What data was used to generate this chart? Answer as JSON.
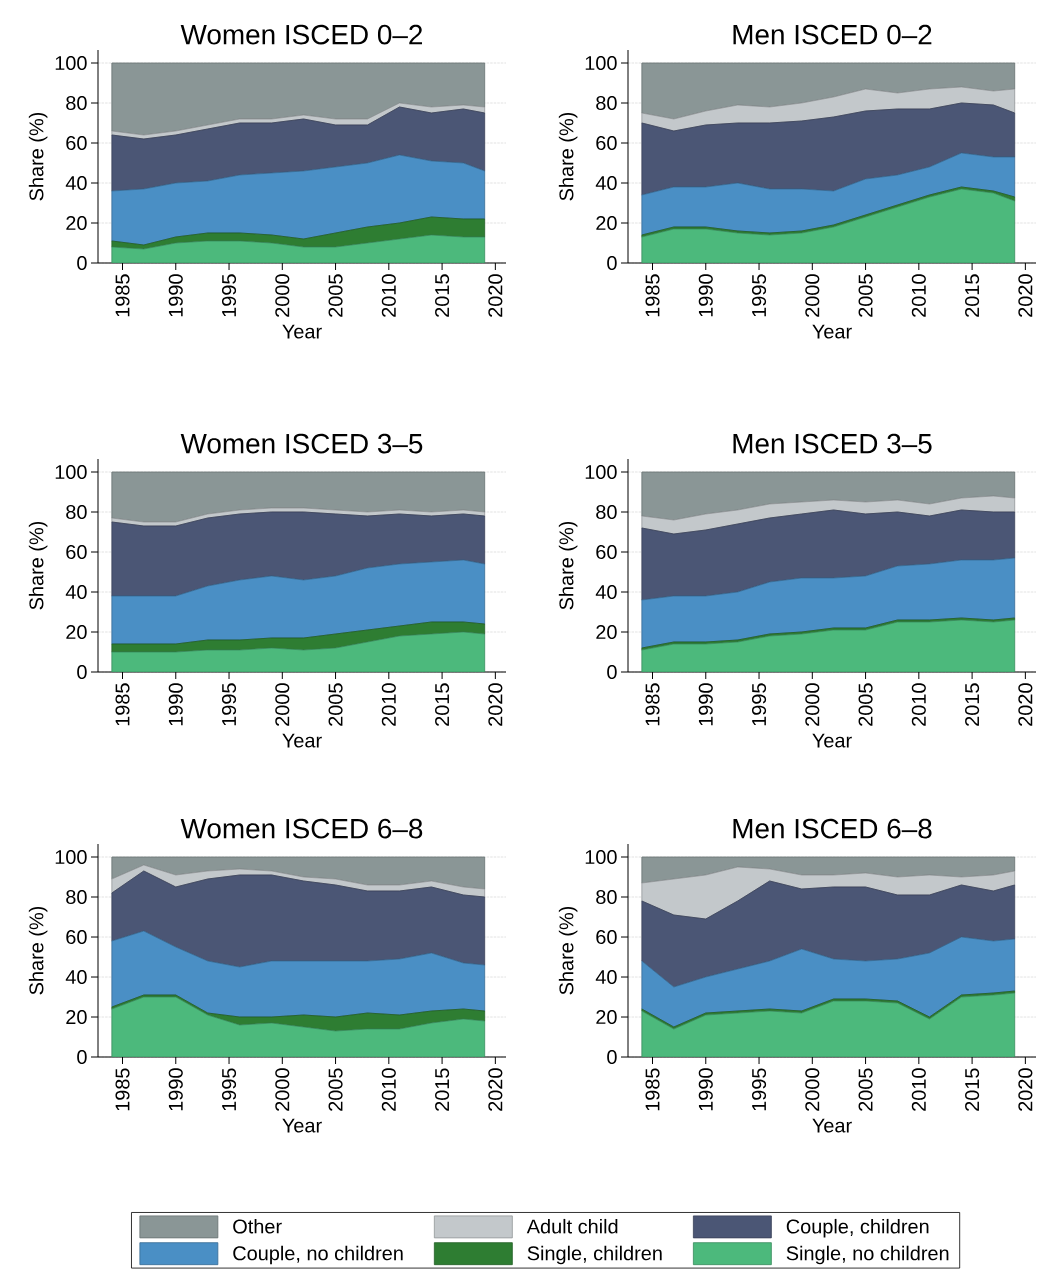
{
  "chart_data": [
    {
      "type": "area",
      "title": "Women ISCED 0–2",
      "xlabel": "Year",
      "ylabel": "Share (%)",
      "stacked": true,
      "grid": "y",
      "x": [
        1984,
        1987,
        1990,
        1993,
        1996,
        1999,
        2002,
        2005,
        2008,
        2011,
        2014,
        2017,
        2019
      ],
      "xlim": [
        1982.7,
        2021
      ],
      "ylim": [
        0,
        106.5
      ],
      "xticks": [
        1985,
        1990,
        1995,
        2000,
        2005,
        2010,
        2015,
        2020
      ],
      "yticks": [
        0,
        20,
        40,
        60,
        80,
        100
      ],
      "series": [
        {
          "color": "#4cb97c",
          "values": [
            8,
            7,
            10,
            11,
            11,
            10,
            8,
            8,
            10,
            12,
            14,
            13,
            13
          ]
        },
        {
          "color": "#2e7d32",
          "values": [
            3,
            2,
            3,
            4,
            4,
            4,
            4,
            7,
            8,
            8,
            9,
            9,
            9
          ]
        },
        {
          "color": "#4a8fc5",
          "values": [
            25,
            28,
            27,
            26,
            29,
            31,
            34,
            33,
            32,
            34,
            28,
            28,
            24
          ]
        },
        {
          "color": "#4b5675",
          "values": [
            28,
            25,
            24,
            26,
            26,
            25,
            26,
            21,
            19,
            24,
            24,
            27,
            29
          ]
        },
        {
          "color": "#c3c8cb",
          "values": [
            2,
            2,
            2,
            2,
            2,
            2,
            2,
            3,
            3,
            2,
            3,
            2,
            3
          ]
        },
        {
          "color": "#8a9696",
          "values": [
            34,
            36,
            34,
            31,
            28,
            28,
            26,
            28,
            28,
            20,
            22,
            21,
            22
          ]
        }
      ]
    },
    {
      "type": "area",
      "title": "Men ISCED 0–2",
      "xlabel": "Year",
      "ylabel": "Share (%)",
      "stacked": true,
      "grid": "y",
      "x": [
        1984,
        1987,
        1990,
        1993,
        1996,
        1999,
        2002,
        2005,
        2008,
        2011,
        2014,
        2017,
        2019
      ],
      "xlim": [
        1982.7,
        2021
      ],
      "ylim": [
        0,
        106.5
      ],
      "xticks": [
        1985,
        1990,
        1995,
        2000,
        2005,
        2010,
        2015,
        2020
      ],
      "yticks": [
        0,
        20,
        40,
        60,
        80,
        100
      ],
      "series": [
        {
          "color": "#4cb97c",
          "values": [
            13,
            17,
            17,
            15,
            14,
            15,
            18,
            23,
            28,
            33,
            37,
            35,
            31
          ]
        },
        {
          "color": "#2e7d32",
          "values": [
            1,
            1,
            1,
            1,
            1,
            1,
            1,
            1,
            1,
            1,
            1,
            1,
            2
          ]
        },
        {
          "color": "#4a8fc5",
          "values": [
            20,
            20,
            20,
            24,
            22,
            21,
            17,
            18,
            15,
            14,
            17,
            17,
            20
          ]
        },
        {
          "color": "#4b5675",
          "values": [
            36,
            28,
            31,
            30,
            33,
            34,
            37,
            34,
            33,
            29,
            25,
            26,
            22
          ]
        },
        {
          "color": "#c3c8cb",
          "values": [
            5,
            6,
            7,
            9,
            8,
            9,
            10,
            11,
            8,
            10,
            8,
            7,
            12
          ]
        },
        {
          "color": "#8a9696",
          "values": [
            25,
            28,
            24,
            21,
            22,
            20,
            17,
            13,
            15,
            13,
            12,
            14,
            13
          ]
        }
      ]
    },
    {
      "type": "area",
      "title": "Women ISCED 3–5",
      "xlabel": "Year",
      "ylabel": "Share (%)",
      "stacked": true,
      "grid": "y",
      "x": [
        1984,
        1987,
        1990,
        1993,
        1996,
        1999,
        2002,
        2005,
        2008,
        2011,
        2014,
        2017,
        2019
      ],
      "xlim": [
        1982.7,
        2021
      ],
      "ylim": [
        0,
        106.5
      ],
      "xticks": [
        1985,
        1990,
        1995,
        2000,
        2005,
        2010,
        2015,
        2020
      ],
      "yticks": [
        0,
        20,
        40,
        60,
        80,
        100
      ],
      "series": [
        {
          "color": "#4cb97c",
          "values": [
            10,
            10,
            10,
            11,
            11,
            12,
            11,
            12,
            15,
            18,
            19,
            20,
            19
          ]
        },
        {
          "color": "#2e7d32",
          "values": [
            4,
            4,
            4,
            5,
            5,
            5,
            6,
            7,
            6,
            5,
            6,
            5,
            5
          ]
        },
        {
          "color": "#4a8fc5",
          "values": [
            24,
            24,
            24,
            27,
            30,
            31,
            29,
            29,
            31,
            31,
            30,
            31,
            30
          ]
        },
        {
          "color": "#4b5675",
          "values": [
            37,
            35,
            35,
            34,
            33,
            32,
            34,
            31,
            26,
            25,
            23,
            23,
            24
          ]
        },
        {
          "color": "#c3c8cb",
          "values": [
            2,
            2,
            2,
            2,
            2,
            2,
            2,
            2,
            2,
            2,
            2,
            2,
            2
          ]
        },
        {
          "color": "#8a9696",
          "values": [
            23,
            25,
            25,
            21,
            19,
            18,
            18,
            19,
            20,
            19,
            20,
            19,
            20
          ]
        }
      ]
    },
    {
      "type": "area",
      "title": "Men ISCED 3–5",
      "xlabel": "Year",
      "ylabel": "Share (%)",
      "stacked": true,
      "grid": "y",
      "x": [
        1984,
        1987,
        1990,
        1993,
        1996,
        1999,
        2002,
        2005,
        2008,
        2011,
        2014,
        2017,
        2019
      ],
      "xlim": [
        1982.7,
        2021
      ],
      "ylim": [
        0,
        106.5
      ],
      "xticks": [
        1985,
        1990,
        1995,
        2000,
        2005,
        2010,
        2015,
        2020
      ],
      "yticks": [
        0,
        20,
        40,
        60,
        80,
        100
      ],
      "series": [
        {
          "color": "#4cb97c",
          "values": [
            11,
            14,
            14,
            15,
            18,
            19,
            21,
            21,
            25,
            25,
            26,
            25,
            26
          ]
        },
        {
          "color": "#2e7d32",
          "values": [
            1,
            1,
            1,
            1,
            1,
            1,
            1,
            1,
            1,
            1,
            1,
            1,
            1
          ]
        },
        {
          "color": "#4a8fc5",
          "values": [
            24,
            23,
            23,
            24,
            26,
            27,
            25,
            26,
            27,
            28,
            29,
            30,
            30
          ]
        },
        {
          "color": "#4b5675",
          "values": [
            36,
            31,
            33,
            34,
            32,
            32,
            34,
            31,
            27,
            24,
            25,
            24,
            23
          ]
        },
        {
          "color": "#c3c8cb",
          "values": [
            6,
            7,
            8,
            7,
            7,
            6,
            5,
            6,
            6,
            6,
            6,
            8,
            7
          ]
        },
        {
          "color": "#8a9696",
          "values": [
            22,
            24,
            21,
            19,
            16,
            15,
            14,
            15,
            14,
            16,
            13,
            12,
            13
          ]
        }
      ]
    },
    {
      "type": "area",
      "title": "Women ISCED 6–8",
      "xlabel": "Year",
      "ylabel": "Share (%)",
      "stacked": true,
      "grid": "y",
      "legend": "bottom",
      "x": [
        1984,
        1987,
        1990,
        1993,
        1996,
        1999,
        2002,
        2005,
        2008,
        2011,
        2014,
        2017,
        2019
      ],
      "xlim": [
        1982.7,
        2021
      ],
      "ylim": [
        0,
        106.5
      ],
      "xticks": [
        1985,
        1990,
        1995,
        2000,
        2005,
        2010,
        2015,
        2020
      ],
      "yticks": [
        0,
        20,
        40,
        60,
        80,
        100
      ],
      "series": [
        {
          "name": "Single, no children",
          "color": "#4cb97c",
          "values": [
            24,
            30,
            30,
            21,
            16,
            17,
            15,
            13,
            14,
            14,
            17,
            19,
            18
          ]
        },
        {
          "name": "Single, children",
          "color": "#2e7d32",
          "values": [
            1,
            1,
            1,
            1,
            4,
            3,
            6,
            7,
            8,
            7,
            6,
            5,
            5
          ]
        },
        {
          "name": "Couple, no children",
          "color": "#4a8fc5",
          "values": [
            33,
            32,
            24,
            26,
            25,
            28,
            27,
            28,
            26,
            28,
            29,
            23,
            23
          ]
        },
        {
          "name": "Couple, children",
          "color": "#4b5675",
          "values": [
            24,
            30,
            30,
            41,
            46,
            43,
            40,
            38,
            35,
            34,
            33,
            34,
            34
          ]
        },
        {
          "name": "Adult child",
          "color": "#c3c8cb",
          "values": [
            7,
            3,
            6,
            4,
            3,
            2,
            2,
            3,
            3,
            3,
            3,
            4,
            4
          ]
        },
        {
          "name": "Other",
          "color": "#8a9696",
          "values": [
            11,
            4,
            9,
            7,
            6,
            7,
            10,
            11,
            14,
            14,
            12,
            15,
            16
          ]
        }
      ]
    },
    {
      "type": "area",
      "title": "Men ISCED 6–8",
      "xlabel": "Year",
      "ylabel": "Share (%)",
      "stacked": true,
      "grid": "y",
      "x": [
        1984,
        1987,
        1990,
        1993,
        1996,
        1999,
        2002,
        2005,
        2008,
        2011,
        2014,
        2017,
        2019
      ],
      "xlim": [
        1982.7,
        2021
      ],
      "ylim": [
        0,
        106.5
      ],
      "xticks": [
        1985,
        1990,
        1995,
        2000,
        2005,
        2010,
        2015,
        2020
      ],
      "yticks": [
        0,
        20,
        40,
        60,
        80,
        100
      ],
      "series": [
        {
          "color": "#4cb97c",
          "values": [
            23,
            14,
            21,
            22,
            23,
            22,
            28,
            28,
            27,
            19,
            30,
            31,
            32
          ]
        },
        {
          "color": "#2e7d32",
          "values": [
            1,
            1,
            1,
            1,
            1,
            1,
            1,
            1,
            1,
            1,
            1,
            1,
            1
          ]
        },
        {
          "color": "#4a8fc5",
          "values": [
            24,
            20,
            18,
            21,
            24,
            31,
            20,
            19,
            21,
            32,
            29,
            26,
            26
          ]
        },
        {
          "color": "#4b5675",
          "values": [
            30,
            36,
            29,
            34,
            40,
            30,
            36,
            37,
            32,
            29,
            26,
            25,
            27
          ]
        },
        {
          "color": "#c3c8cb",
          "values": [
            9,
            18,
            22,
            17,
            6,
            7,
            6,
            7,
            9,
            10,
            4,
            8,
            7
          ]
        },
        {
          "color": "#8a9696",
          "values": [
            13,
            11,
            9,
            5,
            6,
            9,
            9,
            8,
            10,
            9,
            10,
            9,
            7
          ]
        }
      ]
    }
  ]
}
